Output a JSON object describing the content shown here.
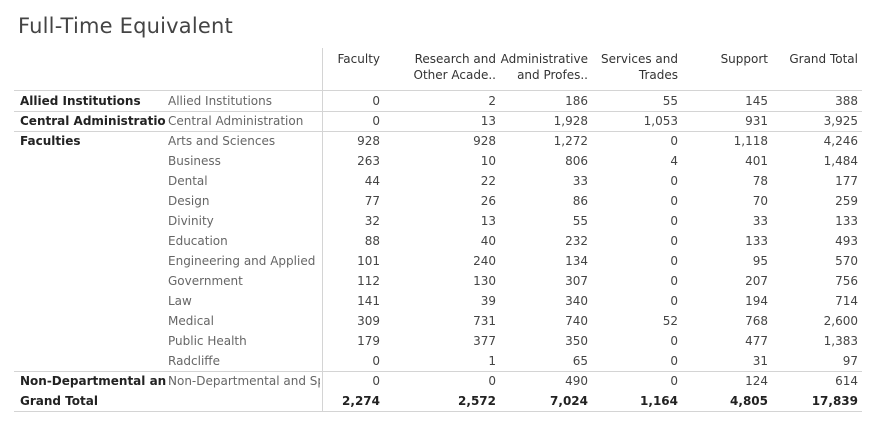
{
  "title": "Full-Time Equivalent",
  "chart_data": {
    "type": "table",
    "title": "Full-Time Equivalent",
    "columns": [
      {
        "line1": "Faculty",
        "line2": ""
      },
      {
        "line1": "Research and",
        "line2": "Other Acade.."
      },
      {
        "line1": "Administrative",
        "line2": "and Profes.."
      },
      {
        "line1": "Services and",
        "line2": "Trades"
      },
      {
        "line1": "Support",
        "line2": ""
      },
      {
        "line1": "Grand Total",
        "line2": ""
      }
    ],
    "rows": [
      {
        "group": "Allied Institutions",
        "unit": "Allied Institutions",
        "values": [
          "0",
          "2",
          "186",
          "55",
          "145",
          "388"
        ]
      },
      {
        "group": "Central Administration",
        "unit": "Central Administration",
        "values": [
          "0",
          "13",
          "1,928",
          "1,053",
          "931",
          "3,925"
        ]
      },
      {
        "group": "Faculties",
        "unit": "Arts and Sciences",
        "values": [
          "928",
          "928",
          "1,272",
          "0",
          "1,118",
          "4,246"
        ]
      },
      {
        "group": "",
        "unit": "Business",
        "values": [
          "263",
          "10",
          "806",
          "4",
          "401",
          "1,484"
        ]
      },
      {
        "group": "",
        "unit": "Dental",
        "values": [
          "44",
          "22",
          "33",
          "0",
          "78",
          "177"
        ]
      },
      {
        "group": "",
        "unit": "Design",
        "values": [
          "77",
          "26",
          "86",
          "0",
          "70",
          "259"
        ]
      },
      {
        "group": "",
        "unit": "Divinity",
        "values": [
          "32",
          "13",
          "55",
          "0",
          "33",
          "133"
        ]
      },
      {
        "group": "",
        "unit": "Education",
        "values": [
          "88",
          "40",
          "232",
          "0",
          "133",
          "493"
        ]
      },
      {
        "group": "",
        "unit": "Engineering and Applied",
        "values": [
          "101",
          "240",
          "134",
          "0",
          "95",
          "570"
        ]
      },
      {
        "group": "",
        "unit": "Government",
        "values": [
          "112",
          "130",
          "307",
          "0",
          "207",
          "756"
        ]
      },
      {
        "group": "",
        "unit": "Law",
        "values": [
          "141",
          "39",
          "340",
          "0",
          "194",
          "714"
        ]
      },
      {
        "group": "",
        "unit": "Medical",
        "values": [
          "309",
          "731",
          "740",
          "52",
          "768",
          "2,600"
        ]
      },
      {
        "group": "",
        "unit": "Public Health",
        "values": [
          "179",
          "377",
          "350",
          "0",
          "477",
          "1,383"
        ]
      },
      {
        "group": "",
        "unit": "Radcliffe",
        "values": [
          "0",
          "1",
          "65",
          "0",
          "31",
          "97"
        ]
      },
      {
        "group": "Non-Departmental and ..",
        "unit": "Non-Departmental and Sp..",
        "values": [
          "0",
          "0",
          "490",
          "0",
          "124",
          "614"
        ]
      }
    ],
    "grand_total": {
      "label": "Grand Total",
      "values": [
        "2,274",
        "2,572",
        "7,024",
        "1,164",
        "4,805",
        "17,839"
      ]
    }
  }
}
